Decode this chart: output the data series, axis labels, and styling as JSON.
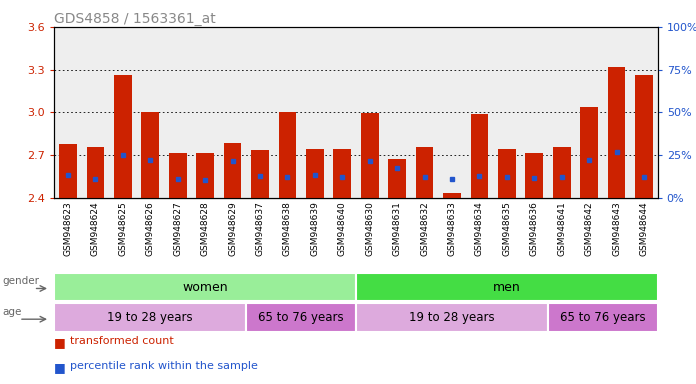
{
  "title": "GDS4858 / 1563361_at",
  "samples": [
    "GSM948623",
    "GSM948624",
    "GSM948625",
    "GSM948626",
    "GSM948627",
    "GSM948628",
    "GSM948629",
    "GSM948637",
    "GSM948638",
    "GSM948639",
    "GSM948640",
    "GSM948630",
    "GSM948631",
    "GSM948632",
    "GSM948633",
    "GSM948634",
    "GSM948635",
    "GSM948636",
    "GSM948641",
    "GSM948642",
    "GSM948643",
    "GSM948644"
  ],
  "bar_tops": [
    2.775,
    2.758,
    3.265,
    3.005,
    2.715,
    2.715,
    2.785,
    2.735,
    3.005,
    2.745,
    2.745,
    2.995,
    2.675,
    2.758,
    2.432,
    2.988,
    2.745,
    2.715,
    2.758,
    3.04,
    3.32,
    3.265
  ],
  "blue_markers": [
    2.558,
    2.535,
    2.698,
    2.665,
    2.535,
    2.528,
    2.655,
    2.555,
    2.545,
    2.558,
    2.548,
    2.655,
    2.607,
    2.545,
    2.535,
    2.555,
    2.548,
    2.538,
    2.548,
    2.668,
    2.72,
    2.548
  ],
  "bar_base": 2.4,
  "ylim_left": [
    2.4,
    3.6
  ],
  "ylim_right": [
    0,
    100
  ],
  "yticks_left": [
    2.4,
    2.7,
    3.0,
    3.3,
    3.6
  ],
  "yticks_right": [
    0,
    25,
    50,
    75,
    100
  ],
  "grid_lines": [
    2.7,
    3.0,
    3.3
  ],
  "bar_color": "#cc2200",
  "blue_color": "#2255cc",
  "bar_width": 0.65,
  "gender_groups": [
    {
      "label": "women",
      "start": 0,
      "end": 11,
      "color": "#99ee99"
    },
    {
      "label": "men",
      "start": 11,
      "end": 22,
      "color": "#44dd44"
    }
  ],
  "age_groups": [
    {
      "label": "19 to 28 years",
      "start": 0,
      "end": 7,
      "color": "#ddaadd"
    },
    {
      "label": "65 to 76 years",
      "start": 7,
      "end": 11,
      "color": "#cc77cc"
    },
    {
      "label": "19 to 28 years",
      "start": 11,
      "end": 18,
      "color": "#ddaadd"
    },
    {
      "label": "65 to 76 years",
      "start": 18,
      "end": 22,
      "color": "#cc77cc"
    }
  ],
  "title_fontsize": 10,
  "axis_color_left": "#cc2200",
  "axis_color_right": "#2255cc",
  "bg_color": "#ffffff",
  "plot_bg_color": "#eeeeee"
}
